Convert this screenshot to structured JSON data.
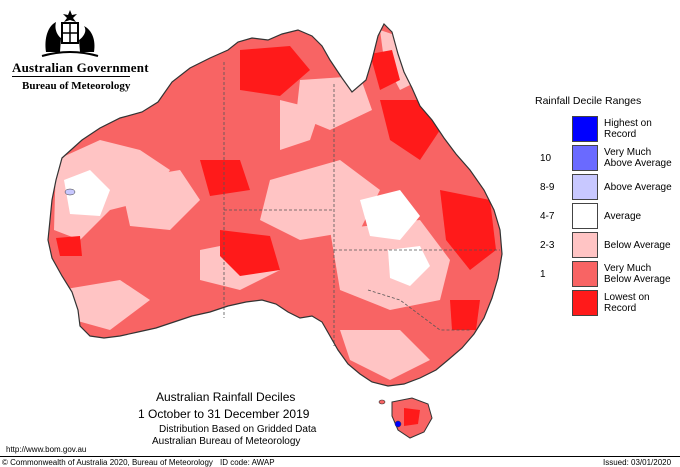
{
  "header": {
    "government": "Australian Government",
    "bureau": "Bureau of Meteorology",
    "crest_icon": "coat-of-arms-icon"
  },
  "legend": {
    "title": "Rainfall Decile Ranges",
    "entries": [
      {
        "label_line1": "Highest on",
        "label_line2": "Record",
        "range": "",
        "color": "#0000ff"
      },
      {
        "label_line1": "Very Much",
        "label_line2": "Above Average",
        "range": "10",
        "color": "#6a6aff"
      },
      {
        "label_line1": "Above Average",
        "label_line2": "",
        "range": "8-9",
        "color": "#c8c8ff"
      },
      {
        "label_line1": "Average",
        "label_line2": "",
        "range": "4-7",
        "color": "#ffffff"
      },
      {
        "label_line1": "Below Average",
        "label_line2": "",
        "range": "2-3",
        "color": "#ffc4c4"
      },
      {
        "label_line1": "Very Much",
        "label_line2": "Below Average",
        "range": "1",
        "color": "#f86464"
      },
      {
        "label_line1": "Lowest on",
        "label_line2": "Record",
        "range": "",
        "color": "#ff1a1a"
      }
    ]
  },
  "map_title": {
    "line1": "Australian Rainfall Deciles",
    "line2": "1 October to 31 December 2019",
    "line3": "Distribution Based on Gridded Data",
    "line4": "Australian Bureau of Meteorology"
  },
  "footer": {
    "url": "http://www.bom.gov.au",
    "copyright": "© Commonwealth of Australia 2020, Bureau of Meteorology",
    "id_code": "ID code: AWAP",
    "issued": "Issued: 03/01/2020"
  },
  "colors": {
    "border": "#333333",
    "state_lines": "#555555"
  }
}
